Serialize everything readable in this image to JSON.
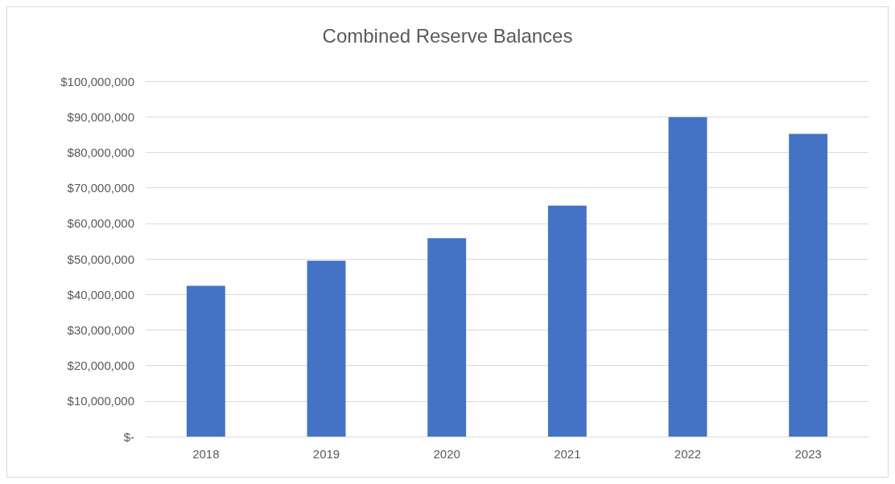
{
  "chart_data": {
    "type": "bar",
    "title": "Combined Reserve Balances",
    "categories": [
      "2018",
      "2019",
      "2020",
      "2021",
      "2022",
      "2023"
    ],
    "values": [
      42400000,
      49500000,
      55800000,
      65000000,
      89900000,
      85200000
    ],
    "color": "#4472c4",
    "ylim": [
      0,
      100000000
    ],
    "yticks": [
      {
        "value": 0,
        "label": "$-"
      },
      {
        "value": 10000000,
        "label": "$10,000,000"
      },
      {
        "value": 20000000,
        "label": "$20,000,000"
      },
      {
        "value": 30000000,
        "label": "$30,000,000"
      },
      {
        "value": 40000000,
        "label": "$40,000,000"
      },
      {
        "value": 50000000,
        "label": "$50,000,000"
      },
      {
        "value": 60000000,
        "label": "$60,000,000"
      },
      {
        "value": 70000000,
        "label": "$70,000,000"
      },
      {
        "value": 80000000,
        "label": "$80,000,000"
      },
      {
        "value": 90000000,
        "label": "$90,000,000"
      },
      {
        "value": 100000000,
        "label": "$100,000,000"
      }
    ],
    "grid": "y"
  }
}
